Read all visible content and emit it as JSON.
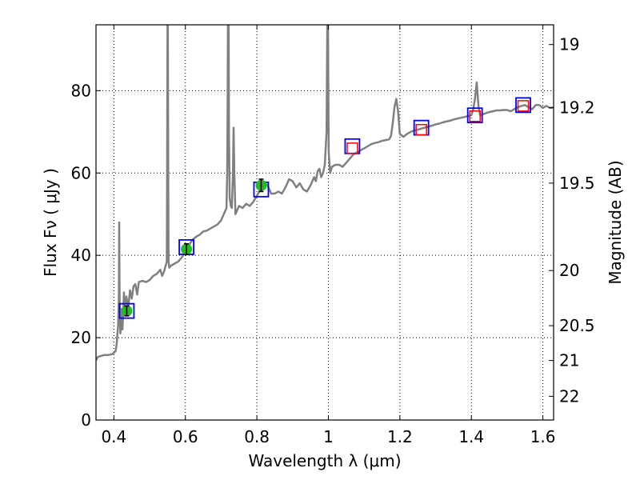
{
  "chart_data": {
    "type": "line",
    "xlabel": "Wavelength  λ (μm)",
    "ylabel": "Flux  Fν  ( μJy )",
    "ylabel_right": "Magnitude (AB)",
    "xlim": [
      0.35,
      1.63
    ],
    "ylim": [
      0,
      96
    ],
    "grid": true,
    "x_ticks": [
      {
        "value": 0.4,
        "label": "0.4"
      },
      {
        "value": 0.6,
        "label": "0.6"
      },
      {
        "value": 0.8,
        "label": "0.8"
      },
      {
        "value": 1.0,
        "label": "1"
      },
      {
        "value": 1.2,
        "label": "1.2"
      },
      {
        "value": 1.4,
        "label": "1.4"
      },
      {
        "value": 1.6,
        "label": "1.6"
      }
    ],
    "y_ticks": [
      {
        "value": 0,
        "label": "0"
      },
      {
        "value": 20,
        "label": "20"
      },
      {
        "value": 40,
        "label": "40"
      },
      {
        "value": 60,
        "label": "60"
      },
      {
        "value": 80,
        "label": "80"
      }
    ],
    "right_ticks": [
      {
        "value": 19.0,
        "label": "19"
      },
      {
        "value": 19.2,
        "label": "19.2"
      },
      {
        "value": 19.5,
        "label": "19.5"
      },
      {
        "value": 20.0,
        "label": "20"
      },
      {
        "value": 20.5,
        "label": "20.5"
      },
      {
        "value": 21.0,
        "label": "21"
      },
      {
        "value": 22.0,
        "label": "22"
      }
    ],
    "spectrum": {
      "color": "#808080",
      "points": [
        [
          0.35,
          14.5
        ],
        [
          0.355,
          15.3
        ],
        [
          0.365,
          15.6
        ],
        [
          0.375,
          15.8
        ],
        [
          0.385,
          15.8
        ],
        [
          0.395,
          16.0
        ],
        [
          0.4,
          16.3
        ],
        [
          0.405,
          16.8
        ],
        [
          0.408,
          18.5
        ],
        [
          0.41,
          21.0
        ],
        [
          0.412,
          23.0
        ],
        [
          0.414,
          30.0
        ],
        [
          0.415,
          48.0
        ],
        [
          0.416,
          30.0
        ],
        [
          0.418,
          21.0
        ],
        [
          0.42,
          23.0
        ],
        [
          0.422,
          27.0
        ],
        [
          0.424,
          22.0
        ],
        [
          0.426,
          26.0
        ],
        [
          0.428,
          31.0
        ],
        [
          0.43,
          28.0
        ],
        [
          0.435,
          30.0
        ],
        [
          0.44,
          27.0
        ],
        [
          0.445,
          31.5
        ],
        [
          0.45,
          29.5
        ],
        [
          0.455,
          32.5
        ],
        [
          0.46,
          33.0
        ],
        [
          0.465,
          30.5
        ],
        [
          0.47,
          33.5
        ],
        [
          0.48,
          33.8
        ],
        [
          0.49,
          33.5
        ],
        [
          0.5,
          34.0
        ],
        [
          0.51,
          35.0
        ],
        [
          0.52,
          35.5
        ],
        [
          0.53,
          36.5
        ],
        [
          0.535,
          35.0
        ],
        [
          0.54,
          36.0
        ],
        [
          0.545,
          37.5
        ],
        [
          0.548,
          38.5
        ],
        [
          0.549,
          60.0
        ],
        [
          0.55,
          96.0
        ],
        [
          0.551,
          96.0
        ],
        [
          0.552,
          60.0
        ],
        [
          0.553,
          38.5
        ],
        [
          0.555,
          37.0
        ],
        [
          0.56,
          37.5
        ],
        [
          0.57,
          38.0
        ],
        [
          0.58,
          38.5
        ],
        [
          0.59,
          39.5
        ],
        [
          0.6,
          41.0
        ],
        [
          0.61,
          42.5
        ],
        [
          0.62,
          43.8
        ],
        [
          0.63,
          44.5
        ],
        [
          0.64,
          45.0
        ],
        [
          0.65,
          45.8
        ],
        [
          0.66,
          46.0
        ],
        [
          0.67,
          46.5
        ],
        [
          0.68,
          47.0
        ],
        [
          0.69,
          47.5
        ],
        [
          0.7,
          48.5
        ],
        [
          0.705,
          49.5
        ],
        [
          0.71,
          50.5
        ],
        [
          0.715,
          51.5
        ],
        [
          0.717,
          60.0
        ],
        [
          0.718,
          75.0
        ],
        [
          0.719,
          96.0
        ],
        [
          0.721,
          96.0
        ],
        [
          0.722,
          70.0
        ],
        [
          0.724,
          54.0
        ],
        [
          0.727,
          52.0
        ],
        [
          0.73,
          51.5
        ],
        [
          0.733,
          60.0
        ],
        [
          0.735,
          71.0
        ],
        [
          0.737,
          60.0
        ],
        [
          0.74,
          50.0
        ],
        [
          0.745,
          51.0
        ],
        [
          0.75,
          52.0
        ],
        [
          0.76,
          51.5
        ],
        [
          0.77,
          52.5
        ],
        [
          0.78,
          52.0
        ],
        [
          0.79,
          53.0
        ],
        [
          0.8,
          54.5
        ],
        [
          0.81,
          56.0
        ],
        [
          0.82,
          57.5
        ],
        [
          0.83,
          57.0
        ],
        [
          0.84,
          55.0
        ],
        [
          0.85,
          55.0
        ],
        [
          0.86,
          55.5
        ],
        [
          0.87,
          55.0
        ],
        [
          0.88,
          56.5
        ],
        [
          0.885,
          57.5
        ],
        [
          0.89,
          58.5
        ],
        [
          0.9,
          58.0
        ],
        [
          0.91,
          56.5
        ],
        [
          0.92,
          57.5
        ],
        [
          0.93,
          56.0
        ],
        [
          0.94,
          55.5
        ],
        [
          0.95,
          57.0
        ],
        [
          0.96,
          59.0
        ],
        [
          0.965,
          58.0
        ],
        [
          0.97,
          60.5
        ],
        [
          0.975,
          61.0
        ],
        [
          0.98,
          59.0
        ],
        [
          0.985,
          60.0
        ],
        [
          0.99,
          62.0
        ],
        [
          0.995,
          70.0
        ],
        [
          0.997,
          96.0
        ],
        [
          0.999,
          96.0
        ],
        [
          1.001,
          65.0
        ],
        [
          1.005,
          60.0
        ],
        [
          1.01,
          61.5
        ],
        [
          1.02,
          62.0
        ],
        [
          1.03,
          62.0
        ],
        [
          1.04,
          61.5
        ],
        [
          1.05,
          62.5
        ],
        [
          1.06,
          63.5
        ],
        [
          1.07,
          64.5
        ],
        [
          1.08,
          65.0
        ],
        [
          1.09,
          65.5
        ],
        [
          1.1,
          66.0
        ],
        [
          1.11,
          66.5
        ],
        [
          1.12,
          67.0
        ],
        [
          1.13,
          67.3
        ],
        [
          1.14,
          67.5
        ],
        [
          1.15,
          67.8
        ],
        [
          1.16,
          68.0
        ],
        [
          1.17,
          68.2
        ],
        [
          1.175,
          69.0
        ],
        [
          1.18,
          72.0
        ],
        [
          1.185,
          76.0
        ],
        [
          1.19,
          78.0
        ],
        [
          1.195,
          75.0
        ],
        [
          1.2,
          69.5
        ],
        [
          1.21,
          68.8
        ],
        [
          1.22,
          69.5
        ],
        [
          1.23,
          70.0
        ],
        [
          1.24,
          70.3
        ],
        [
          1.25,
          70.5
        ],
        [
          1.26,
          70.8
        ],
        [
          1.27,
          71.0
        ],
        [
          1.28,
          71.3
        ],
        [
          1.29,
          71.5
        ],
        [
          1.3,
          71.8
        ],
        [
          1.31,
          72.0
        ],
        [
          1.32,
          72.3
        ],
        [
          1.33,
          72.5
        ],
        [
          1.34,
          72.7
        ],
        [
          1.35,
          73.0
        ],
        [
          1.36,
          73.2
        ],
        [
          1.37,
          73.4
        ],
        [
          1.38,
          73.6
        ],
        [
          1.39,
          73.8
        ],
        [
          1.4,
          74.0
        ],
        [
          1.405,
          75.5
        ],
        [
          1.41,
          78.0
        ],
        [
          1.415,
          82.0
        ],
        [
          1.42,
          76.0
        ],
        [
          1.425,
          74.0
        ],
        [
          1.43,
          74.2
        ],
        [
          1.44,
          74.5
        ],
        [
          1.45,
          74.8
        ],
        [
          1.46,
          75.0
        ],
        [
          1.47,
          75.2
        ],
        [
          1.48,
          75.2
        ],
        [
          1.49,
          75.3
        ],
        [
          1.5,
          75.3
        ],
        [
          1.51,
          75.0
        ],
        [
          1.52,
          75.5
        ],
        [
          1.53,
          76.0
        ],
        [
          1.54,
          76.3
        ],
        [
          1.55,
          76.5
        ],
        [
          1.56,
          76.0
        ],
        [
          1.57,
          75.5
        ],
        [
          1.58,
          76.5
        ],
        [
          1.59,
          76.5
        ],
        [
          1.6,
          75.8
        ],
        [
          1.61,
          76.3
        ],
        [
          1.62,
          75.8
        ],
        [
          1.63,
          75.9
        ]
      ]
    },
    "model_points": {
      "color": "#0000ff",
      "points": [
        [
          0.436,
          26.5
        ],
        [
          0.603,
          42.0
        ],
        [
          0.812,
          56.0
        ],
        [
          1.067,
          66.5
        ],
        [
          1.26,
          71.0
        ],
        [
          1.41,
          74.0
        ],
        [
          1.545,
          76.5
        ]
      ]
    },
    "upper_points": {
      "color": "#ff0000",
      "points": [
        [
          1.067,
          66.0
        ],
        [
          1.26,
          70.5
        ],
        [
          1.41,
          73.8
        ],
        [
          1.545,
          76.3
        ]
      ]
    },
    "observed_points": {
      "color": "#22bb22",
      "points": [
        {
          "x": 0.436,
          "y": 26.5,
          "err": 1.2
        },
        {
          "x": 0.603,
          "y": 41.5,
          "err": 1.3
        },
        {
          "x": 0.812,
          "y": 57.0,
          "err": 1.5
        }
      ]
    }
  }
}
